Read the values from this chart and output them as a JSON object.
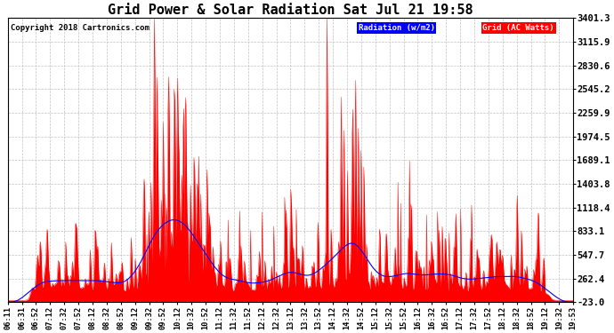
{
  "title": "Grid Power & Solar Radiation Sat Jul 21 19:58",
  "copyright": "Copyright 2018 Cartronics.com",
  "legend_radiation": "Radiation (w/m2)",
  "legend_grid": "Grid (AC Watts)",
  "yticks": [
    3401.3,
    3115.9,
    2830.6,
    2545.2,
    2259.9,
    1974.5,
    1689.1,
    1403.8,
    1118.4,
    833.1,
    547.7,
    262.4,
    -23.0
  ],
  "ymin": -23.0,
  "ymax": 3401.3,
  "background_color": "#ffffff",
  "plot_bg_color": "#ffffff",
  "grid_color": "#c0c0c0",
  "radiation_color": "#ff0000",
  "grid_line_color": "#0000ff",
  "legend_radiation_bg": "#0000ff",
  "legend_grid_bg": "#ff0000",
  "title_fontsize": 11,
  "tick_fontsize": 7.5,
  "n_points": 830,
  "xtick_labels": [
    "06:11",
    "06:31",
    "06:52",
    "07:12",
    "07:32",
    "07:52",
    "08:12",
    "08:32",
    "08:52",
    "09:12",
    "09:32",
    "09:52",
    "10:12",
    "10:32",
    "10:52",
    "11:12",
    "11:32",
    "11:52",
    "12:12",
    "12:32",
    "13:12",
    "13:32",
    "13:52",
    "14:12",
    "14:32",
    "14:52",
    "15:12",
    "15:32",
    "15:52",
    "16:12",
    "16:32",
    "16:52",
    "17:12",
    "17:32",
    "17:52",
    "18:12",
    "18:32",
    "18:52",
    "19:12",
    "19:32",
    "19:53"
  ]
}
